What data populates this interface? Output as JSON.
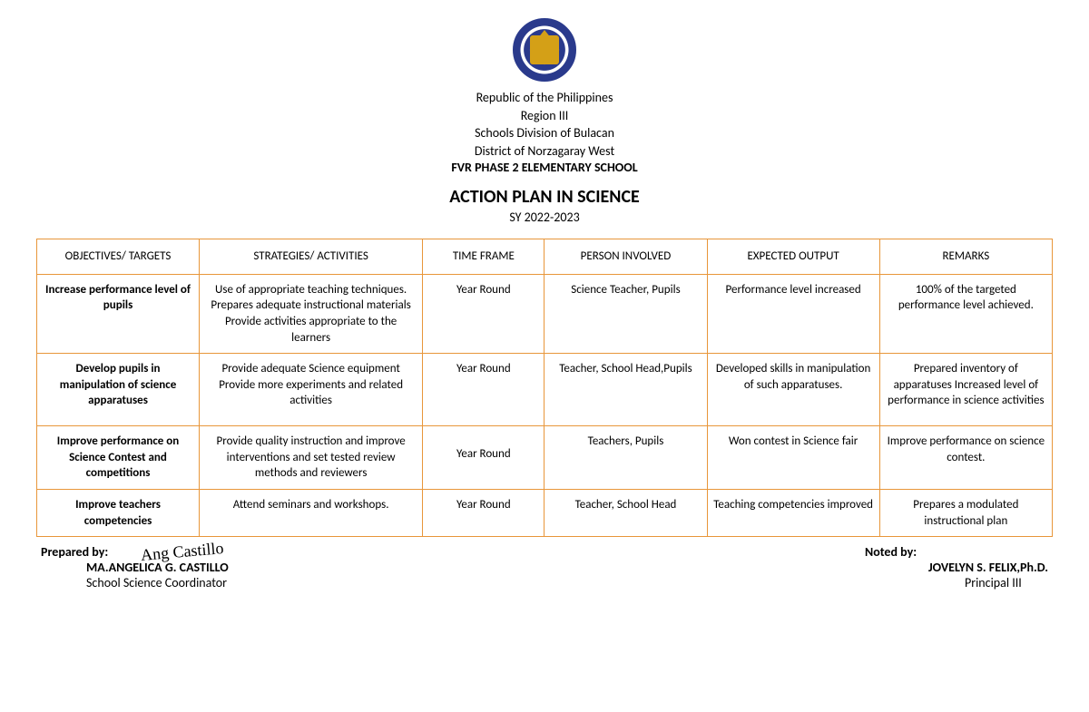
{
  "header": {
    "line1": "Republic of the Philippines",
    "line2": "Region III",
    "line3": "Schools Division of Bulacan",
    "line4": "District of Norzagaray West",
    "school": "FVR PHASE 2 ELEMENTARY SCHOOL",
    "title": "ACTION PLAN IN SCIENCE",
    "subtitle": "SY 2022-2023"
  },
  "table": {
    "columns": [
      "OBJECTIVES/ TARGETS",
      "STRATEGIES/ ACTIVITIES",
      "TIME FRAME",
      "PERSON INVOLVED",
      "EXPECTED OUTPUT",
      "REMARKS"
    ],
    "rows": [
      {
        "objective": "Increase performance level of pupils",
        "strategy": "Use of appropriate teaching techniques. Prepares adequate instructional materials Provide activities appropriate to the learners",
        "time": "Year Round",
        "person": "Science Teacher, Pupils",
        "output": "Performance level increased",
        "remarks": "100% of the targeted performance level achieved."
      },
      {
        "objective": "Develop pupils in manipulation of science apparatuses",
        "strategy": "Provide adequate Science equipment Provide more experiments and related activities",
        "time": "Year Round",
        "person": "Teacher, School Head,Pupils",
        "output": "Developed skills in manipulation of such apparatuses.",
        "remarks": "Prepared inventory of apparatuses Increased level of performance in science activities"
      },
      {
        "objective": "Improve performance on Science Contest and competitions",
        "strategy": "Provide quality instruction and improve interventions and set tested review methods and reviewers",
        "time": "Year Round",
        "person": "Teachers, Pupils",
        "output": "Won contest in Science fair",
        "remarks": "Improve performance on science contest."
      },
      {
        "objective": "Improve teachers competencies",
        "strategy": "Attend seminars and workshops.",
        "time": "Year Round",
        "person": "Teacher, School Head",
        "output": "Teaching competencies improved",
        "remarks": "Prepares a modulated instructional plan"
      }
    ]
  },
  "signatures": {
    "prepared_label": "Prepared by:",
    "prepared_name": "MA.ANGELICA G. CASTILLO",
    "prepared_title": "School Science Coordinator",
    "prepared_script": "Ang Castillo",
    "noted_label": "Noted by:",
    "noted_name": "JOVELYN S. FELIX,Ph.D.",
    "noted_title": "Principal III"
  },
  "styling": {
    "border_color": "#e8963a",
    "seal_color": "#2a3a8c",
    "text_color": "#000000",
    "background": "#ffffff"
  }
}
